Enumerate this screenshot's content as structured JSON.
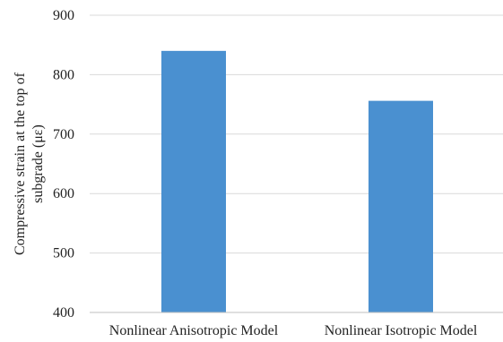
{
  "chart_data": {
    "type": "bar",
    "categories": [
      "Nonlinear Anisotropic Model",
      "Nonlinear Isotropic Model"
    ],
    "values": [
      840,
      756
    ],
    "title": "",
    "xlabel": "",
    "ylabel_lines": [
      "Compressive strain at the top of",
      "subgrade (με)"
    ],
    "ylim": [
      400,
      900
    ],
    "yticks": [
      400,
      500,
      600,
      700,
      800,
      900
    ],
    "grid": true,
    "legend": "none",
    "bar_color": "#4a90d0"
  }
}
